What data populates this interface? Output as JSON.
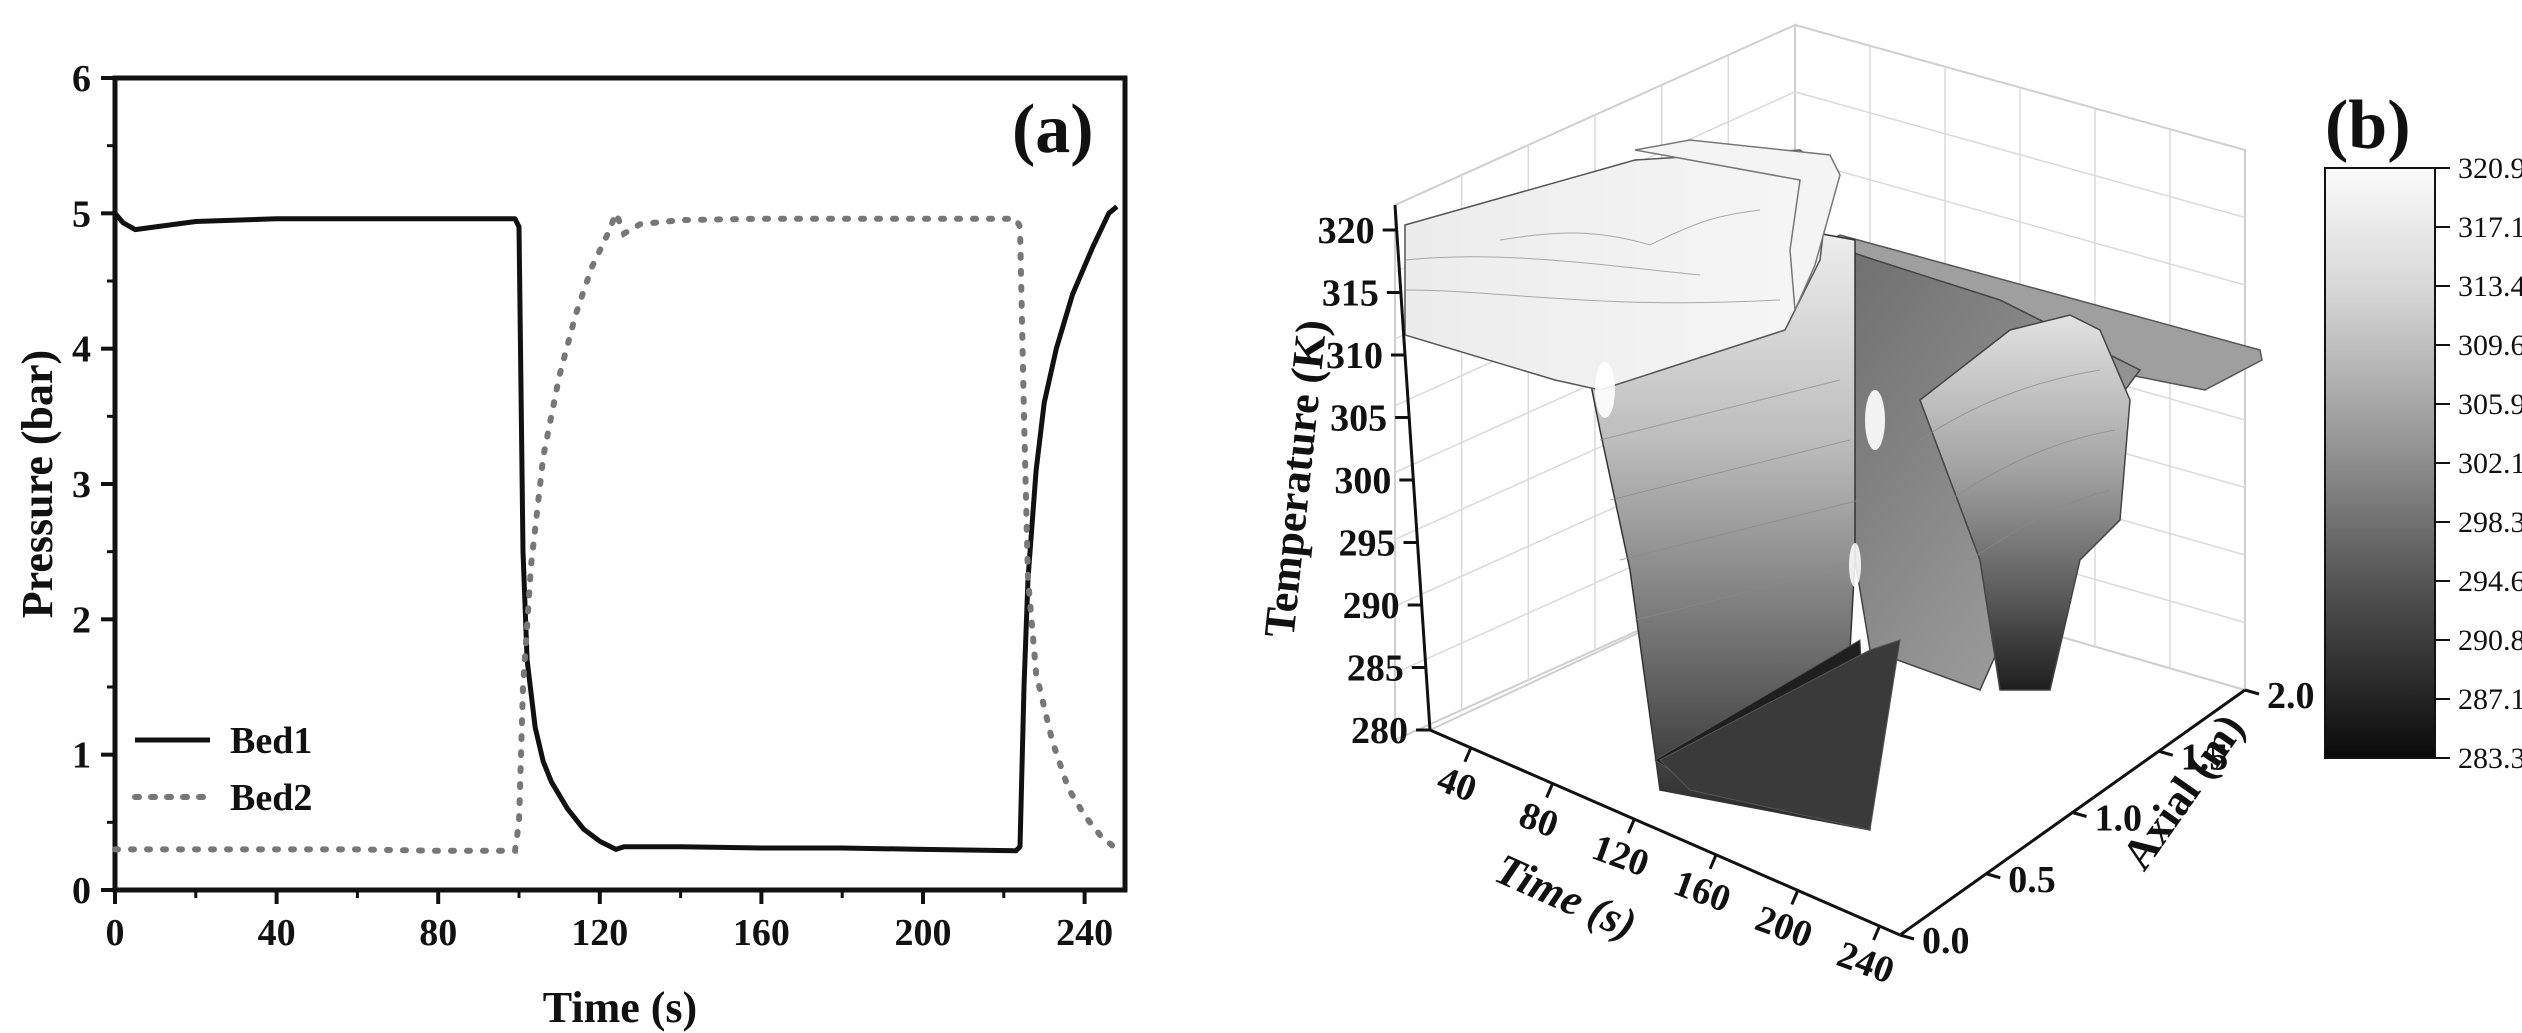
{
  "chart_data": [
    {
      "type": "line",
      "panel_label": "(a)",
      "xlabel": "Time (s)",
      "ylabel": "Pressure (bar)",
      "xlim": [
        0,
        250
      ],
      "ylim": [
        0,
        6
      ],
      "x_ticks": [
        "0",
        "40",
        "80",
        "120",
        "160",
        "200",
        "240"
      ],
      "y_ticks": [
        "0",
        "1",
        "2",
        "3",
        "4",
        "5",
        "6"
      ],
      "legend_position": "bottom-left",
      "series": [
        {
          "name": "Bed1",
          "style": "solid",
          "color": "#111111",
          "points": [
            [
              0,
              5.0
            ],
            [
              2,
              4.93
            ],
            [
              5,
              4.88
            ],
            [
              10,
              4.9
            ],
            [
              20,
              4.94
            ],
            [
              40,
              4.96
            ],
            [
              60,
              4.96
            ],
            [
              80,
              4.96
            ],
            [
              99,
              4.96
            ],
            [
              100,
              4.9
            ],
            [
              101,
              2.5
            ],
            [
              102,
              1.7
            ],
            [
              104,
              1.2
            ],
            [
              106,
              0.95
            ],
            [
              108,
              0.8
            ],
            [
              112,
              0.6
            ],
            [
              116,
              0.45
            ],
            [
              120,
              0.36
            ],
            [
              124,
              0.3
            ],
            [
              126,
              0.32
            ],
            [
              140,
              0.32
            ],
            [
              160,
              0.31
            ],
            [
              180,
              0.31
            ],
            [
              200,
              0.3
            ],
            [
              223,
              0.29
            ],
            [
              224,
              0.32
            ],
            [
              225,
              1.5
            ],
            [
              226,
              2.3
            ],
            [
              228,
              3.1
            ],
            [
              230,
              3.6
            ],
            [
              233,
              4.0
            ],
            [
              237,
              4.4
            ],
            [
              242,
              4.75
            ],
            [
              246,
              5.0
            ],
            [
              248,
              5.05
            ]
          ]
        },
        {
          "name": "Bed2",
          "style": "dotted",
          "color": "#777777",
          "points": [
            [
              0,
              0.3
            ],
            [
              20,
              0.3
            ],
            [
              40,
              0.3
            ],
            [
              60,
              0.3
            ],
            [
              80,
              0.29
            ],
            [
              99,
              0.29
            ],
            [
              100,
              0.5
            ],
            [
              101,
              1.5
            ],
            [
              103,
              2.4
            ],
            [
              106,
              3.2
            ],
            [
              110,
              3.8
            ],
            [
              114,
              4.25
            ],
            [
              118,
              4.6
            ],
            [
              122,
              4.85
            ],
            [
              124,
              5.0
            ],
            [
              126,
              4.85
            ],
            [
              130,
              4.92
            ],
            [
              140,
              4.95
            ],
            [
              160,
              4.96
            ],
            [
              180,
              4.96
            ],
            [
              200,
              4.96
            ],
            [
              223,
              4.96
            ],
            [
              224,
              4.9
            ],
            [
              225,
              3.5
            ],
            [
              226,
              2.3
            ],
            [
              228,
              1.6
            ],
            [
              232,
              1.1
            ],
            [
              236,
              0.75
            ],
            [
              240,
              0.55
            ],
            [
              244,
              0.4
            ],
            [
              248,
              0.3
            ]
          ]
        }
      ]
    },
    {
      "type": "surface3d",
      "panel_label": "(b)",
      "xlabel": "Time (s)",
      "ylabel": "Axial (m)",
      "zlabel": "Temperature (K)",
      "x_ticks": [
        "40",
        "80",
        "120",
        "160",
        "200",
        "240"
      ],
      "y_ticks": [
        "0.0",
        "0.5",
        "1.0",
        "1.5",
        "2.0"
      ],
      "z_ticks": [
        "280",
        "285",
        "290",
        "295",
        "300",
        "305",
        "310",
        "315",
        "320"
      ],
      "zlim": [
        280,
        322
      ],
      "colorbar_labels": [
        "320.9",
        "317.1",
        "313.4",
        "309.6",
        "305.9",
        "302.1",
        "298.3",
        "294.6",
        "290.8",
        "287.1",
        "283.3"
      ],
      "colorbar_range": [
        283.3,
        320.9
      ]
    }
  ]
}
